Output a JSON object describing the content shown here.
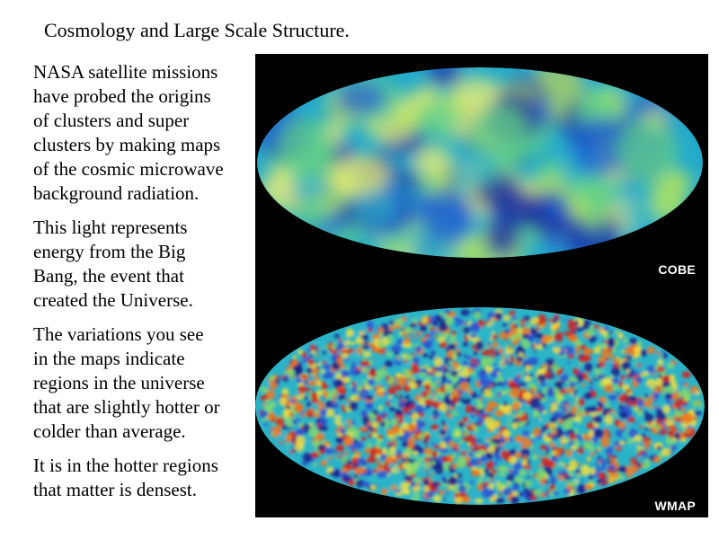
{
  "slide": {
    "title": "Cosmology and Large Scale Structure."
  },
  "body": {
    "paragraphs": [
      [
        "NASA satellite missions",
        "have probed the origins",
        "of clusters and super",
        "clusters by making maps",
        "of the cosmic microwave",
        "background radiation."
      ],
      [
        "This light represents",
        "energy from the Big",
        "Bang, the event that",
        "created the Universe."
      ],
      [
        "The variations you see",
        "in the maps indicate",
        "regions in the universe",
        "that are slightly hotter or",
        "colder than average."
      ],
      [
        "It is in the hotter regions",
        "that matter is densest."
      ]
    ]
  },
  "maps": {
    "cobe": {
      "label": "COBE",
      "base_color": "#22aacc",
      "palette": [
        "#1a2ea0",
        "#1e5fd0",
        "#2fb0c8",
        "#5fd08a",
        "#b8e65a",
        "#f0f070"
      ]
    },
    "wmap": {
      "label": "WMAP",
      "base_color": "#2bb3c8",
      "palette": [
        "#14208a",
        "#2a55d0",
        "#2fb8c8",
        "#7fd870",
        "#f0e040",
        "#f07a20",
        "#d82018"
      ]
    }
  }
}
